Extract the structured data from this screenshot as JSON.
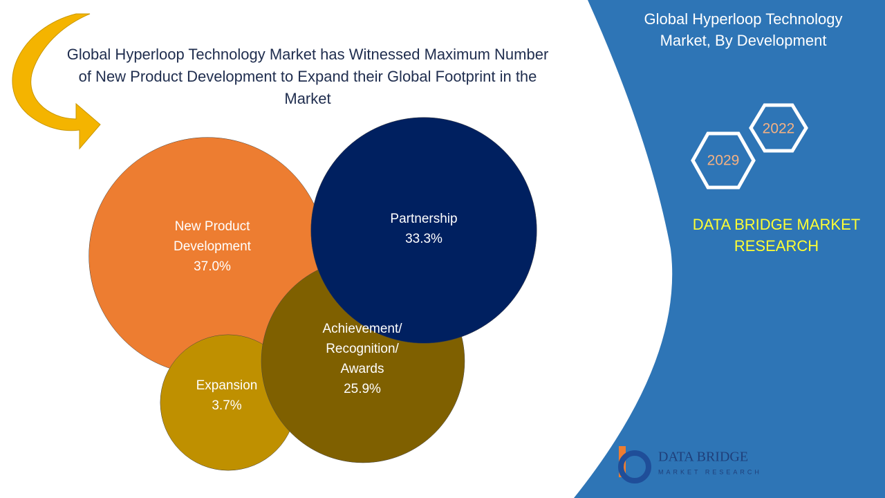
{
  "chart_data": {
    "type": "bubble",
    "title": [
      "Global Hyperloop Technology Market has Witnessed Maximum Number",
      "of New Product Development  to Expand their Global Footprint in the",
      "Market"
    ],
    "categories": [
      [
        "New Product",
        "Development"
      ],
      [
        "Expansion"
      ],
      [
        "Achievement/",
        "Recognition/",
        "Awards"
      ],
      [
        "Partnership"
      ]
    ],
    "values": [
      37.0,
      3.7,
      25.9,
      33.3
    ],
    "value_labels": [
      "37.0%",
      "3.7%",
      "25.9%",
      "33.3%"
    ],
    "colors": [
      "#ed7d31",
      "#bf9000",
      "#7f6000",
      "#002060"
    ]
  },
  "panel": {
    "title": [
      "Global Hyperloop Technology",
      "Market, By Development"
    ],
    "years": [
      "2022",
      "2029"
    ],
    "brand": [
      "DATA BRIDGE MARKET",
      "RESEARCH"
    ],
    "logo": {
      "name": "DATA BRIDGE",
      "tagline": "MARKET RESEARCH"
    }
  }
}
